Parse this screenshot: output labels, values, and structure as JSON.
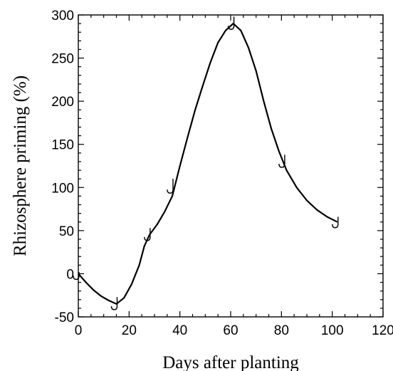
{
  "chart_data": {
    "type": "line",
    "title": "",
    "xlabel": "Days after planting",
    "ylabel": "Rhizosphere priming (%)",
    "xlim": [
      0,
      120
    ],
    "ylim": [
      -50,
      300
    ],
    "xticks": [
      0,
      20,
      40,
      60,
      80,
      100,
      120
    ],
    "yticks": [
      -50,
      0,
      50,
      100,
      150,
      200,
      250,
      300
    ],
    "grid": false,
    "legend": "none",
    "series": [
      {
        "points": [
          {
            "x": 0,
            "y": 0
          },
          {
            "x": 15,
            "y": -35
          },
          {
            "x": 28,
            "y": 45
          },
          {
            "x": 37,
            "y": 100
          },
          {
            "x": 61,
            "y": 290
          },
          {
            "x": 81,
            "y": 130
          },
          {
            "x": 102,
            "y": 60
          }
        ],
        "curve": [
          [
            0,
            0
          ],
          [
            3,
            -10
          ],
          [
            6,
            -19
          ],
          [
            9,
            -26
          ],
          [
            12,
            -31
          ],
          [
            15,
            -35
          ],
          [
            18,
            -28
          ],
          [
            21,
            -12
          ],
          [
            24,
            10
          ],
          [
            26,
            32
          ],
          [
            28,
            45
          ],
          [
            31,
            57
          ],
          [
            34,
            72
          ],
          [
            37,
            90
          ],
          [
            40,
            125
          ],
          [
            43,
            158
          ],
          [
            46,
            190
          ],
          [
            49,
            218
          ],
          [
            52,
            245
          ],
          [
            55,
            268
          ],
          [
            58,
            282
          ],
          [
            61,
            290
          ],
          [
            64,
            282
          ],
          [
            67,
            262
          ],
          [
            70,
            235
          ],
          [
            73,
            200
          ],
          [
            76,
            168
          ],
          [
            79,
            142
          ],
          [
            82,
            120
          ],
          [
            86,
            100
          ],
          [
            90,
            85
          ],
          [
            94,
            74
          ],
          [
            98,
            66
          ],
          [
            102,
            60
          ]
        ],
        "error_bars": [
          {
            "x": 0,
            "y": 0,
            "err": 2
          },
          {
            "x": 15,
            "y": -35,
            "err": 8
          },
          {
            "x": 28,
            "y": 45,
            "err": 8
          },
          {
            "x": 37,
            "y": 100,
            "err": 10
          },
          {
            "x": 61,
            "y": 290,
            "err": 8
          },
          {
            "x": 81,
            "y": 130,
            "err": 8
          },
          {
            "x": 102,
            "y": 60,
            "err": 6
          }
        ]
      }
    ]
  }
}
